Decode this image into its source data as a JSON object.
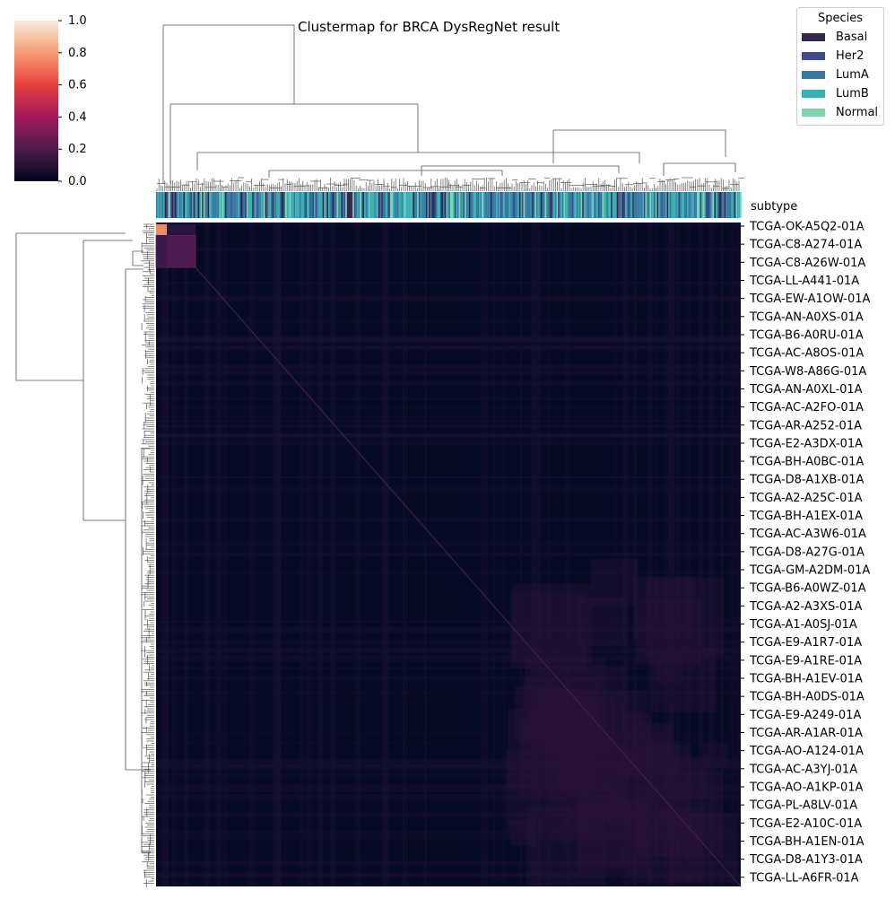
{
  "chart_data": {
    "type": "heatmap",
    "title": "Clustermap for BRCA DysRegNet result",
    "colorbar": {
      "ticks": [
        "1.0",
        "0.8",
        "0.6",
        "0.4",
        "0.2",
        "0.0"
      ],
      "range": [
        0.0,
        1.0
      ],
      "colormap": "rocket",
      "colors": [
        "#03051a",
        "#4c1d4b",
        "#a11a5b",
        "#e83f3f",
        "#f69c73",
        "#faebdd"
      ]
    },
    "annotation_row_label": "subtype",
    "row_labels": [
      "TCGA-OK-A5Q2-01A",
      "TCGA-C8-A274-01A",
      "TCGA-C8-A26W-01A",
      "TCGA-LL-A441-01A",
      "TCGA-EW-A1OW-01A",
      "TCGA-AN-A0XS-01A",
      "TCGA-B6-A0RU-01A",
      "TCGA-AC-A8OS-01A",
      "TCGA-W8-A86G-01A",
      "TCGA-AN-A0XL-01A",
      "TCGA-AC-A2FO-01A",
      "TCGA-AR-A252-01A",
      "TCGA-E2-A3DX-01A",
      "TCGA-BH-A0BC-01A",
      "TCGA-D8-A1XB-01A",
      "TCGA-A2-A25C-01A",
      "TCGA-BH-A1EX-01A",
      "TCGA-AC-A3W6-01A",
      "TCGA-D8-A27G-01A",
      "TCGA-GM-A2DM-01A",
      "TCGA-B6-A0WZ-01A",
      "TCGA-A2-A3XS-01A",
      "TCGA-A1-A0SJ-01A",
      "TCGA-E9-A1R7-01A",
      "TCGA-E9-A1RE-01A",
      "TCGA-BH-A1EV-01A",
      "TCGA-BH-A0DS-01A",
      "TCGA-E9-A249-01A",
      "TCGA-AR-A1AR-01A",
      "TCGA-AO-A124-01A",
      "TCGA-AC-A3YJ-01A",
      "TCGA-AO-A1KP-01A",
      "TCGA-PL-A8LV-01A",
      "TCGA-E2-A10C-01A",
      "TCGA-BH-A1EN-01A",
      "TCGA-D8-A1Y3-01A",
      "TCGA-LL-A6FR-01A"
    ],
    "legend": {
      "title": "Species",
      "entries": [
        {
          "label": "Basal",
          "color": "#35264c"
        },
        {
          "label": "Her2",
          "color": "#3e4a89"
        },
        {
          "label": "LumA",
          "color": "#357ba3"
        },
        {
          "label": "LumB",
          "color": "#3aaeb0"
        },
        {
          "label": "Normal",
          "color": "#7ad6ab"
        }
      ],
      "placement": "top-right"
    },
    "background_value": 0.02,
    "highlighted_cells": [
      {
        "rows": "TCGA-OK-A5Q2-01A",
        "value": 0.78
      },
      {
        "rows": "TCGA-C8-A274-01A to TCGA-C8-A26W-01A block",
        "value": 0.25
      }
    ]
  }
}
